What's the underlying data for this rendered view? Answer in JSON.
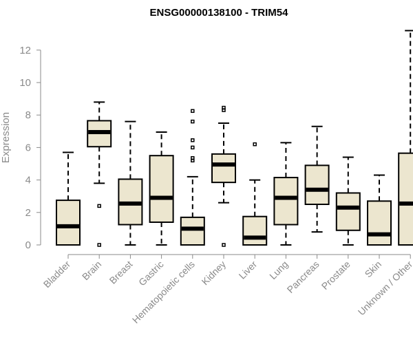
{
  "chart_data": {
    "type": "box",
    "title": "ENSG00000138100 - TRIM54",
    "ylabel": "Expression",
    "xlabel": "",
    "ylim": [
      0,
      13.2
    ],
    "yticks": [
      0,
      2,
      4,
      6,
      8,
      10,
      12
    ],
    "grid": false,
    "categories": [
      "Bladder",
      "Brain",
      "Breast",
      "Gastric",
      "Hematopoietic cells",
      "Kidney",
      "Liver",
      "Lung",
      "Pancreas",
      "Prostate",
      "Skin",
      "Unknown / Other"
    ],
    "boxes": [
      {
        "min": 0,
        "q1": 0,
        "median": 1.15,
        "q3": 2.75,
        "max": 5.7,
        "outliers": []
      },
      {
        "min": 3.8,
        "q1": 6.05,
        "median": 6.95,
        "q3": 7.65,
        "max": 8.8,
        "outliers": [
          2.4,
          0
        ]
      },
      {
        "min": 0,
        "q1": 1.25,
        "median": 2.55,
        "q3": 4.05,
        "max": 7.6,
        "outliers": []
      },
      {
        "min": 0,
        "q1": 1.4,
        "median": 2.9,
        "q3": 5.5,
        "max": 6.95,
        "outliers": []
      },
      {
        "min": 0,
        "q1": 0,
        "median": 1.0,
        "q3": 1.7,
        "max": 4.2,
        "outliers": [
          8.25,
          7.6,
          6.45,
          6.0,
          5.35,
          5.2
        ]
      },
      {
        "min": 2.6,
        "q1": 3.85,
        "median": 4.95,
        "q3": 5.6,
        "max": 7.5,
        "outliers": [
          8.45,
          8.3,
          0
        ]
      },
      {
        "min": 0,
        "q1": 0,
        "median": 0.45,
        "q3": 1.75,
        "max": 4.0,
        "outliers": [
          6.2
        ]
      },
      {
        "min": 0,
        "q1": 1.25,
        "median": 2.9,
        "q3": 4.15,
        "max": 6.3,
        "outliers": []
      },
      {
        "min": 0.8,
        "q1": 2.5,
        "median": 3.4,
        "q3": 4.9,
        "max": 7.3,
        "outliers": []
      },
      {
        "min": 0,
        "q1": 0.9,
        "median": 2.3,
        "q3": 3.2,
        "max": 5.4,
        "outliers": []
      },
      {
        "min": 0,
        "q1": 0,
        "median": 0.65,
        "q3": 2.7,
        "max": 4.3,
        "outliers": []
      },
      {
        "min": 0,
        "q1": 0,
        "median": 2.55,
        "q3": 5.65,
        "max": 13.2,
        "outliers": []
      }
    ],
    "colors": {
      "box_fill": "#ece6cf",
      "box_stroke": "#000000",
      "axis": "#8a8a8a"
    }
  }
}
